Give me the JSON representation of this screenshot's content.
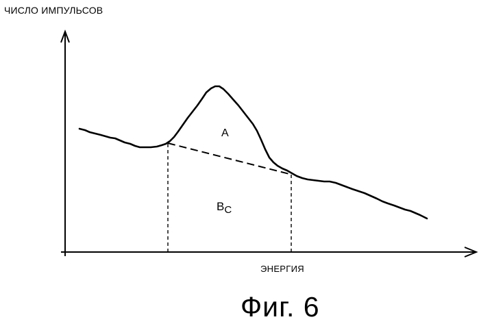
{
  "figure": {
    "y_axis_label": "ЧИСЛО ИМПУЛЬСОВ",
    "x_axis_label": "ЭНЕРГИЯ",
    "caption": "Фиг. 6",
    "region_peak_label": "A",
    "region_background_label": "B",
    "region_background_subscript": "C"
  }
}
